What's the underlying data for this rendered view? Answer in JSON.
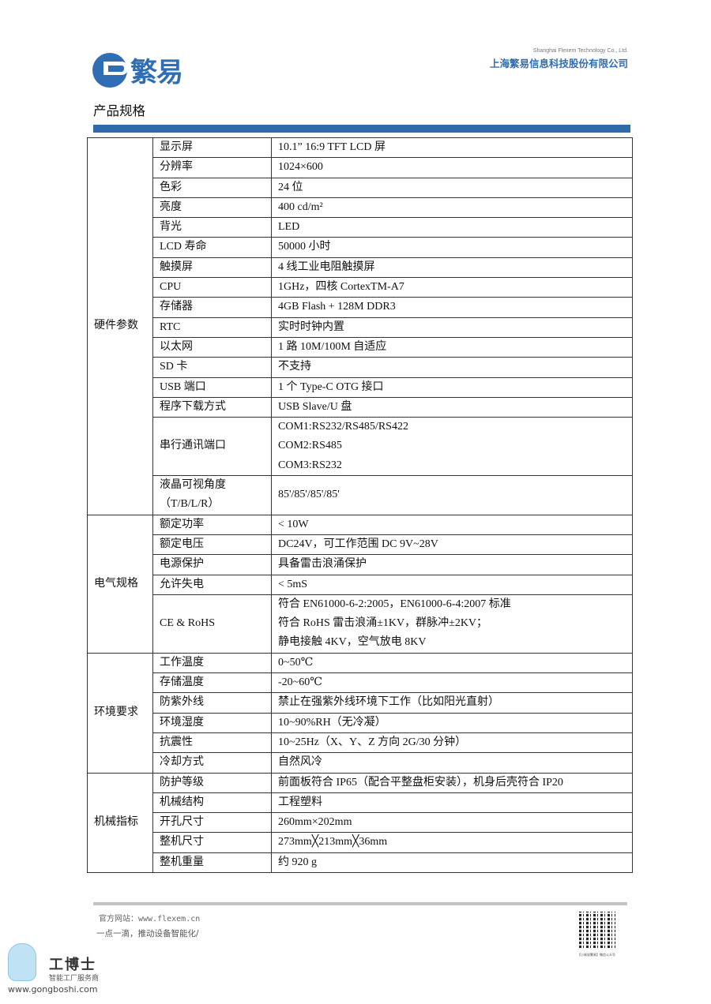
{
  "header": {
    "logo_text": "繁易",
    "company_en": "Shanghai Flexem Technology Co., Ltd.",
    "company_cn": "上海繁易信息科技股份有限公司",
    "brand_color": "#2f6db5"
  },
  "title": "产品规格",
  "spec_groups": [
    {
      "category": "硬件参数",
      "rows": [
        {
          "name": "显示屏",
          "value": "10.1” 16:9 TFT LCD 屏"
        },
        {
          "name": "分辨率",
          "value": "1024×600"
        },
        {
          "name": "色彩",
          "value": "24 位"
        },
        {
          "name": "亮度",
          "value": "400 cd/m²"
        },
        {
          "name": "背光",
          "value": "LED"
        },
        {
          "name": "LCD 寿命",
          "value": "50000 小时"
        },
        {
          "name": "触摸屏",
          "value": "4 线工业电阻触摸屏"
        },
        {
          "name": "CPU",
          "value": "1GHz，四核 CortexTM-A7"
        },
        {
          "name": "存储器",
          "value": "4GB Flash + 128M DDR3"
        },
        {
          "name": "RTC",
          "value": "实时时钟内置"
        },
        {
          "name": "以太网",
          "value": "1 路 10M/100M 自适应"
        },
        {
          "name": "SD 卡",
          "value": "不支持"
        },
        {
          "name": "USB 端口",
          "value": "1 个 Type-C OTG  接口"
        },
        {
          "name": "程序下载方式",
          "value": "USB Slave/U 盘"
        },
        {
          "name": "串行通讯端口",
          "value": "COM1:RS232/RS485/RS422\nCOM2:RS485\nCOM3:RS232",
          "lines": 3
        },
        {
          "name": "液晶可视角度\n（T/B/L/R）",
          "value": "85'/85'/85'/85'",
          "lines": 2
        }
      ]
    },
    {
      "category": "电气规格",
      "rows": [
        {
          "name": "额定功率",
          "value": "< 10W"
        },
        {
          "name": "额定电压",
          "value": "DC24V，可工作范围  DC 9V~28V"
        },
        {
          "name": "电源保护",
          "value": "具备雷击浪涌保护"
        },
        {
          "name": "允许失电",
          "value": "< 5mS"
        },
        {
          "name": "CE & RoHS",
          "value": "符合 EN61000-6-2:2005，EN61000-6-4:2007 标准\n符合 RoHS 雷击浪涌±1KV，群脉冲±2KV；\n静电接触 4KV，空气放电 8KV",
          "lines": 3
        }
      ]
    },
    {
      "category": "环境要求",
      "rows": [
        {
          "name": "工作温度",
          "value": "0~50℃"
        },
        {
          "name": "存储温度",
          "value": "-20~60℃"
        },
        {
          "name": "防紫外线",
          "value": "禁止在强紫外线环境下工作（比如阳光直射）"
        },
        {
          "name": "环境湿度",
          "value": "10~90%RH（无冷凝）"
        },
        {
          "name": "抗震性",
          "value": "10~25Hz（X、Y、Z 方向 2G/30 分钟）"
        },
        {
          "name": "冷却方式",
          "value": "自然风冷"
        }
      ]
    },
    {
      "category": "机械指标",
      "rows": [
        {
          "name": "防护等级",
          "value": "前面板符合 IP65（配合平整盘柜安装），机身后壳符合 IP20"
        },
        {
          "name": "机械结构",
          "value": "工程塑料"
        },
        {
          "name": "开孔尺寸",
          "value": "260mm×202mm"
        },
        {
          "name": "整机尺寸",
          "value": "273mm╳213mm╳36mm"
        },
        {
          "name": "整机重量",
          "value": "约 920 g"
        }
      ]
    }
  ],
  "footer": {
    "website": "官方网站：www.flexem.cn",
    "slogan": "一点一滴，推动设备智能化/",
    "qr_caption": "【小易说繁易】微信公众号",
    "watermark_brand": "工博士",
    "watermark_sub": "智能工厂服务商",
    "watermark_url": "www.gongboshi.com"
  }
}
